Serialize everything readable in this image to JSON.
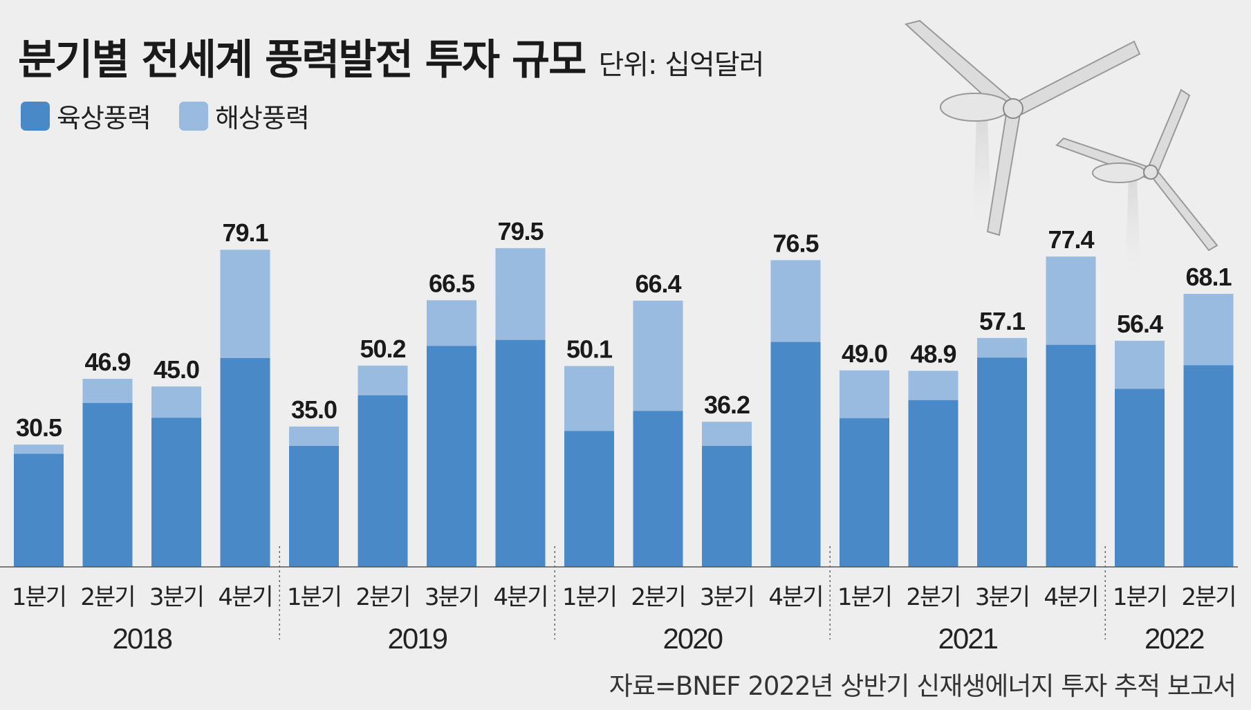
{
  "title": "분기별 전세계 풍력발전 투자 규모",
  "unit": "단위: 십억달러",
  "source": "자료=BNEF 2022년 상반기 신재생에너지 투자 추적 보고서",
  "colors": {
    "onshore": "#4a89c8",
    "offshore": "#9abbe0",
    "background": "#eeeeee",
    "text": "#1a1a1a",
    "turbine": "#d9d9d9"
  },
  "chart_data": {
    "type": "bar",
    "stacked": true,
    "legend": [
      "육상풍력",
      "해상풍력"
    ],
    "legend_position": "top-left",
    "categories": [
      "1분기",
      "2분기",
      "3분기",
      "4분기",
      "1분기",
      "2분기",
      "3분기",
      "4분기",
      "1분기",
      "2분기",
      "3분기",
      "4분기",
      "1분기",
      "2분기",
      "3분기",
      "4분기",
      "1분기",
      "2분기"
    ],
    "groups": [
      {
        "year": "2018",
        "count": 4
      },
      {
        "year": "2019",
        "count": 4
      },
      {
        "year": "2020",
        "count": 4
      },
      {
        "year": "2021",
        "count": 4
      },
      {
        "year": "2022",
        "count": 2
      }
    ],
    "totals": [
      30.5,
      46.9,
      45.0,
      79.1,
      35.0,
      50.2,
      66.5,
      79.5,
      50.1,
      66.4,
      36.2,
      76.5,
      49.0,
      48.9,
      57.1,
      77.4,
      56.4,
      68.1
    ],
    "total_labels": [
      "30.5",
      "46.9",
      "45.0",
      "79.1",
      "35.0",
      "50.2",
      "66.5",
      "79.5",
      "50.1",
      "66.4",
      "36.2",
      "76.5",
      "49.0",
      "48.9",
      "57.1",
      "77.4",
      "56.4",
      "68.1"
    ],
    "series": [
      {
        "name": "육상풍력",
        "values": [
          28.2,
          40.9,
          37.2,
          52.1,
          30.2,
          42.8,
          55.1,
          56.6,
          33.9,
          38.9,
          30.2,
          56.1,
          37.1,
          41.6,
          52.2,
          55.4,
          44.4,
          50.3
        ]
      },
      {
        "name": "해상풍력",
        "values": [
          2.3,
          6.0,
          7.8,
          27.0,
          4.8,
          7.4,
          11.4,
          22.9,
          16.2,
          27.5,
          6.0,
          20.4,
          11.9,
          7.3,
          4.9,
          22.0,
          12.0,
          17.8
        ]
      }
    ],
    "ylim": [
      0,
      130
    ],
    "grid": false,
    "xlabel": "",
    "ylabel": ""
  }
}
